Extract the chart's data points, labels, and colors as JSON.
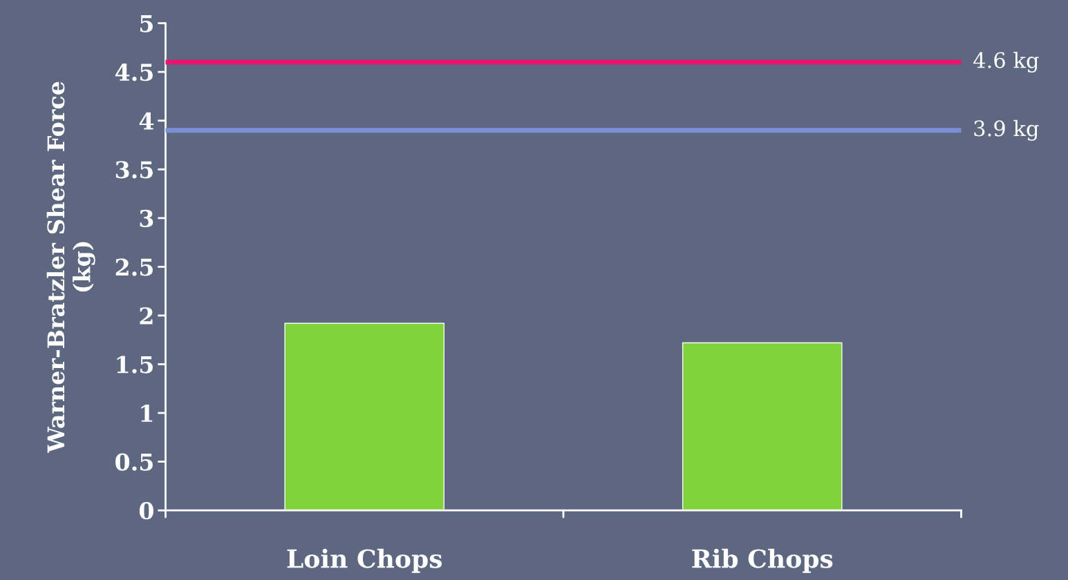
{
  "chart_data": {
    "type": "bar",
    "ylabel": "Warner-Bratzler Shear Force\n(kg)",
    "categories": [
      "Loin Chops",
      "Rib Chops"
    ],
    "values": [
      1.92,
      1.72
    ],
    "color": "#7ed23a",
    "ylim": [
      0,
      5
    ],
    "yticks": [
      0,
      0.5,
      1,
      1.5,
      2,
      2.5,
      3,
      3.5,
      4,
      4.5,
      5
    ],
    "grid": false,
    "ref_lines": [
      {
        "axis": "y",
        "value": 4.6,
        "label": "4.6 kg",
        "color": "#e8146e"
      },
      {
        "axis": "y",
        "value": 3.9,
        "label": "3.9 kg",
        "color": "#7b8fd6"
      }
    ]
  }
}
